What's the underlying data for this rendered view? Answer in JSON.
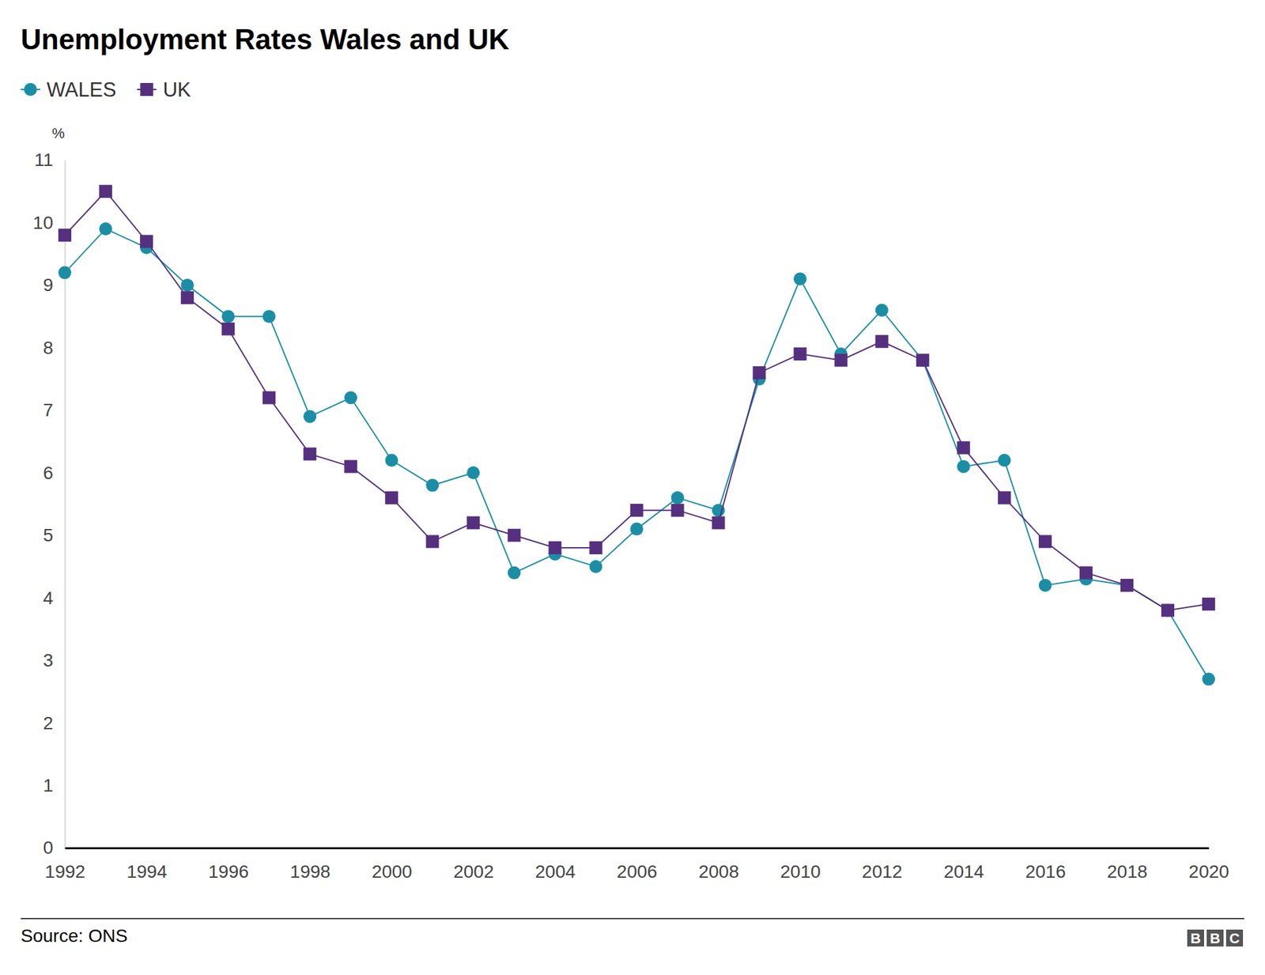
{
  "chart_data": {
    "type": "line",
    "title": "Unemployment Rates Wales and UK",
    "y_label": "%",
    "source": "Source: ONS",
    "logo": "BBC",
    "x": [
      1992,
      1993,
      1994,
      1995,
      1996,
      1997,
      1998,
      1999,
      2000,
      2001,
      2002,
      2003,
      2004,
      2005,
      2006,
      2007,
      2008,
      2009,
      2010,
      2011,
      2012,
      2013,
      2014,
      2015,
      2016,
      2017,
      2018,
      2019,
      2020
    ],
    "series": [
      {
        "name": "WALES",
        "color": "#1b8ea6",
        "marker": "circle",
        "values": [
          9.2,
          9.9,
          9.6,
          9.0,
          8.5,
          8.5,
          6.9,
          7.2,
          6.2,
          5.8,
          6.0,
          4.4,
          4.7,
          4.5,
          5.1,
          5.6,
          5.4,
          7.5,
          9.1,
          7.9,
          8.6,
          7.8,
          6.1,
          6.2,
          4.2,
          4.3,
          4.2,
          3.8,
          2.7
        ]
      },
      {
        "name": "UK",
        "color": "#55307f",
        "marker": "square",
        "values": [
          9.8,
          10.5,
          9.7,
          8.8,
          8.3,
          7.2,
          6.3,
          6.1,
          5.6,
          4.9,
          5.2,
          5.0,
          4.8,
          4.8,
          5.4,
          5.4,
          5.2,
          7.6,
          7.9,
          7.8,
          8.1,
          7.8,
          6.4,
          5.6,
          4.9,
          4.4,
          4.2,
          3.8,
          3.9
        ]
      }
    ],
    "xlim": [
      1992,
      2020
    ],
    "xticks": [
      1992,
      1994,
      1996,
      1998,
      2000,
      2002,
      2004,
      2006,
      2008,
      2010,
      2012,
      2014,
      2016,
      2018,
      2020
    ],
    "ylim": [
      0,
      11
    ],
    "yticks": [
      0,
      1,
      2,
      3,
      4,
      5,
      6,
      7,
      8,
      9,
      10,
      11
    ],
    "grid": false,
    "legend": "top-left"
  }
}
